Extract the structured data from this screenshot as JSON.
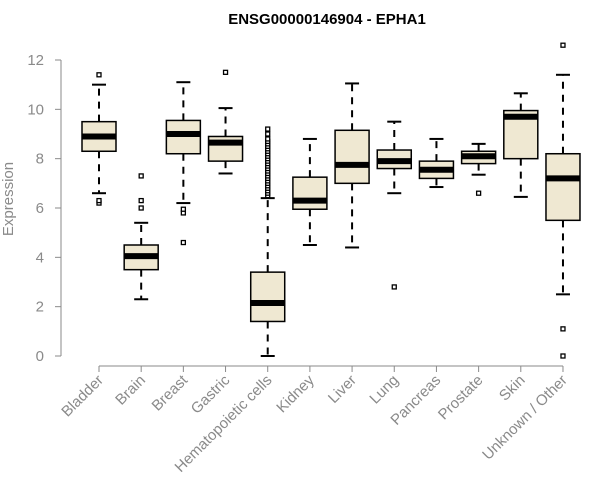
{
  "chart_data": {
    "type": "box",
    "title": "ENSG00000146904 - EPHA1",
    "xlabel": "",
    "ylabel": "Expression",
    "ylim": [
      0,
      12
    ],
    "yticks": [
      0,
      2,
      4,
      6,
      8,
      10,
      12
    ],
    "grid": false,
    "categories": [
      "Bladder",
      "Brain",
      "Breast",
      "Gastric",
      "Hematopoietic cells",
      "Kidney",
      "Liver",
      "Lung",
      "Pancreas",
      "Prostate",
      "Skin",
      "Unknown / Other"
    ],
    "boxes": [
      {
        "category": "Bladder",
        "whisker_low": 6.6,
        "q1": 8.3,
        "median": 8.9,
        "q3": 9.5,
        "whisker_high": 11.0,
        "outliers": [
          6.2,
          6.3,
          11.4
        ]
      },
      {
        "category": "Brain",
        "whisker_low": 2.3,
        "q1": 3.5,
        "median": 4.05,
        "q3": 4.5,
        "whisker_high": 5.4,
        "outliers": [
          6.0,
          6.3,
          7.3
        ]
      },
      {
        "category": "Breast",
        "whisker_low": 6.2,
        "q1": 8.2,
        "median": 9.0,
        "q3": 9.55,
        "whisker_high": 11.1,
        "outliers": [
          5.8,
          5.95,
          4.6
        ]
      },
      {
        "category": "Gastric",
        "whisker_low": 7.4,
        "q1": 7.9,
        "median": 8.65,
        "q3": 8.9,
        "whisker_high": 10.05,
        "outliers": [
          11.5
        ]
      },
      {
        "category": "Hematopoietic cells",
        "whisker_low": 0.0,
        "q1": 1.4,
        "median": 2.15,
        "q3": 3.4,
        "whisker_high": 6.4,
        "outliers": [
          6.5,
          6.6,
          6.7,
          6.8,
          6.9,
          7.0,
          7.1,
          7.2,
          7.3,
          7.4,
          7.5,
          7.6,
          7.7,
          7.8,
          7.9,
          8.0,
          8.1,
          8.2,
          8.3,
          8.4,
          8.5,
          8.6,
          8.7,
          8.8,
          9.0,
          9.2
        ]
      },
      {
        "category": "Kidney",
        "whisker_low": 4.5,
        "q1": 5.95,
        "median": 6.3,
        "q3": 7.25,
        "whisker_high": 8.8,
        "outliers": []
      },
      {
        "category": "Liver",
        "whisker_low": 4.4,
        "q1": 7.0,
        "median": 7.75,
        "q3": 9.15,
        "whisker_high": 11.05,
        "outliers": []
      },
      {
        "category": "Lung",
        "whisker_low": 6.6,
        "q1": 7.6,
        "median": 7.9,
        "q3": 8.35,
        "whisker_high": 9.5,
        "outliers": [
          2.8
        ]
      },
      {
        "category": "Pancreas",
        "whisker_low": 6.85,
        "q1": 7.2,
        "median": 7.55,
        "q3": 7.9,
        "whisker_high": 8.8,
        "outliers": []
      },
      {
        "category": "Prostate",
        "whisker_low": 7.35,
        "q1": 7.8,
        "median": 8.1,
        "q3": 8.3,
        "whisker_high": 8.6,
        "outliers": [
          6.6
        ]
      },
      {
        "category": "Skin",
        "whisker_low": 6.45,
        "q1": 8.0,
        "median": 9.7,
        "q3": 9.95,
        "whisker_high": 10.65,
        "outliers": []
      },
      {
        "category": "Unknown / Other",
        "whisker_low": 2.5,
        "q1": 5.5,
        "median": 7.2,
        "q3": 8.2,
        "whisker_high": 11.4,
        "outliers": [
          12.6,
          1.1,
          0.0
        ]
      }
    ],
    "colors": {
      "box_fill": "#efe8d2",
      "box_stroke": "#000000",
      "median": "#000000",
      "axis": "#8a8a8a",
      "axis_text": "#8a8a8a",
      "title": "#000000"
    }
  }
}
